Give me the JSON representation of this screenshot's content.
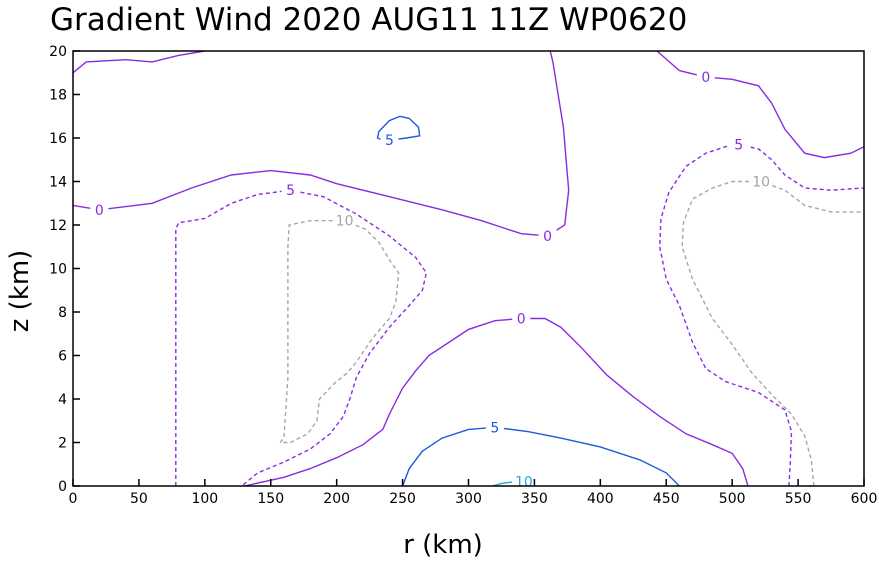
{
  "chart_data": {
    "type": "contour",
    "title": "Gradient Wind 2020 AUG11 11Z  WP0620",
    "xlabel": "r (km)",
    "ylabel": "z (km)",
    "xlim": [
      0,
      600
    ],
    "ylim": [
      0,
      20
    ],
    "xticks": [
      "0",
      "50",
      "100",
      "150",
      "200",
      "250",
      "300",
      "350",
      "400",
      "450",
      "500",
      "550",
      "600"
    ],
    "yticks": [
      "0",
      "2",
      "4",
      "6",
      "8",
      "10",
      "12",
      "14",
      "16",
      "18",
      "20"
    ],
    "contours": [
      {
        "level": 0,
        "color": "#8a2be2",
        "dash": "solid",
        "lines": [
          {
            "label": "0",
            "label_at": [
              20,
              12.7
            ],
            "points": [
              [
                0,
                12.9
              ],
              [
                20,
                12.7
              ],
              [
                60,
                13
              ],
              [
                90,
                13.7
              ],
              [
                120,
                14.3
              ],
              [
                150,
                14.5
              ],
              [
                180,
                14.3
              ],
              [
                200,
                13.9
              ],
              [
                240,
                13.3
              ],
              [
                280,
                12.7
              ],
              [
                310,
                12.2
              ],
              [
                340,
                11.6
              ],
              [
                360,
                11.5
              ]
            ]
          },
          {
            "label": "0",
            "label_at": [
              360,
              11.5
            ],
            "points": [
              [
                360,
                11.5
              ],
              [
                373,
                12
              ],
              [
                376,
                13.6
              ],
              [
                374,
                15
              ],
              [
                372,
                16.5
              ],
              [
                368,
                18
              ],
              [
                364,
                19.5
              ],
              [
                362,
                20
              ]
            ]
          },
          {
            "label": "",
            "label_at": null,
            "points": [
              [
                0,
                19
              ],
              [
                10,
                19.5
              ],
              [
                40,
                19.6
              ],
              [
                60,
                19.5
              ],
              [
                80,
                19.8
              ],
              [
                100,
                20
              ]
            ]
          },
          {
            "label": "0",
            "label_at": [
              480,
              18.8
            ],
            "points": [
              [
                443,
                20
              ],
              [
                460,
                19.1
              ],
              [
                480,
                18.8
              ],
              [
                500,
                18.7
              ],
              [
                520,
                18.4
              ],
              [
                530,
                17.6
              ],
              [
                540,
                16.4
              ],
              [
                555,
                15.3
              ],
              [
                570,
                15.1
              ],
              [
                590,
                15.3
              ],
              [
                600,
                15.6
              ]
            ]
          },
          {
            "label": "0",
            "label_at": [
              340,
              7.7
            ],
            "points": [
              [
                130,
                0
              ],
              [
                160,
                0.4
              ],
              [
                180,
                0.8
              ],
              [
                200,
                1.3
              ],
              [
                220,
                1.9
              ],
              [
                235,
                2.6
              ],
              [
                240,
                3.3
              ],
              [
                250,
                4.5
              ],
              [
                260,
                5.3
              ],
              [
                270,
                6
              ],
              [
                285,
                6.6
              ],
              [
                300,
                7.2
              ],
              [
                320,
                7.6
              ],
              [
                340,
                7.7
              ],
              [
                358,
                7.7
              ],
              [
                370,
                7.3
              ],
              [
                385,
                6.4
              ],
              [
                405,
                5.1
              ],
              [
                425,
                4.1
              ],
              [
                445,
                3.2
              ],
              [
                465,
                2.4
              ],
              [
                485,
                1.9
              ],
              [
                500,
                1.5
              ],
              [
                508,
                0.8
              ],
              [
                512,
                0
              ]
            ]
          }
        ]
      },
      {
        "level": 5,
        "color": "#8a2be2",
        "dash": "dashed",
        "lines": [
          {
            "label": "5",
            "label_at": [
              165,
              13.6
            ],
            "points": [
              [
                78,
                0
              ],
              [
                78,
                11.8
              ],
              [
                80,
                12.1
              ],
              [
                100,
                12.3
              ],
              [
                120,
                13
              ],
              [
                140,
                13.4
              ],
              [
                165,
                13.6
              ],
              [
                190,
                13.3
              ],
              [
                215,
                12.5
              ],
              [
                240,
                11.5
              ],
              [
                260,
                10.5
              ],
              [
                268,
                9.8
              ],
              [
                265,
                9
              ],
              [
                255,
                8.3
              ],
              [
                240,
                7.3
              ],
              [
                225,
                6.1
              ],
              [
                215,
                5
              ],
              [
                210,
                4
              ],
              [
                205,
                3.2
              ],
              [
                195,
                2.4
              ],
              [
                180,
                1.7
              ],
              [
                160,
                1.1
              ],
              [
                140,
                0.6
              ],
              [
                128,
                0
              ]
            ]
          },
          {
            "label": "5",
            "label_at": [
              505,
              15.7
            ],
            "points": [
              [
                543,
                0
              ],
              [
                544,
                1
              ],
              [
                545,
                2.5
              ],
              [
                540,
                3.5
              ],
              [
                520,
                4.3
              ],
              [
                495,
                4.8
              ],
              [
                480,
                5.4
              ],
              [
                470,
                6.6
              ],
              [
                460,
                8.3
              ],
              [
                450,
                9.5
              ],
              [
                445,
                11
              ],
              [
                446,
                12.3
              ],
              [
                452,
                13.5
              ],
              [
                465,
                14.7
              ],
              [
                480,
                15.3
              ],
              [
                495,
                15.6
              ],
              [
                505,
                15.7
              ],
              [
                520,
                15.5
              ],
              [
                530,
                15
              ],
              [
                540,
                14.3
              ],
              [
                555,
                13.7
              ],
              [
                575,
                13.6
              ],
              [
                600,
                13.7
              ]
            ]
          }
        ]
      },
      {
        "level": -5,
        "color": "#1e5adc",
        "dash": "solid",
        "lines": [
          {
            "label": "5",
            "label_at": [
              240,
              15.9
            ],
            "points": [
              [
                240,
                15.9
              ],
              [
                253,
                16
              ],
              [
                263,
                16.1
              ],
              [
                262,
                16.5
              ],
              [
                255,
                16.9
              ],
              [
                248,
                17
              ],
              [
                240,
                16.8
              ],
              [
                232,
                16.3
              ],
              [
                231,
                16
              ],
              [
                235,
                15.9
              ],
              [
                240,
                15.9
              ]
            ]
          },
          {
            "label": "5",
            "label_at": [
              320,
              2.7
            ],
            "points": [
              [
                250,
                0
              ],
              [
                255,
                0.8
              ],
              [
                265,
                1.6
              ],
              [
                280,
                2.2
              ],
              [
                300,
                2.6
              ],
              [
                320,
                2.7
              ],
              [
                345,
                2.5
              ],
              [
                370,
                2.2
              ],
              [
                400,
                1.8
              ],
              [
                430,
                1.2
              ],
              [
                450,
                0.6
              ],
              [
                460,
                0
              ]
            ]
          }
        ]
      },
      {
        "level": -10,
        "color": "#22a8e0",
        "dash": "solid",
        "lines": [
          {
            "label": "10",
            "label_at": [
              342,
              0.2
            ],
            "points": [
              [
                318,
                0
              ],
              [
                325,
                0.12
              ],
              [
                333,
                0.18
              ]
            ]
          }
        ]
      },
      {
        "level": 10,
        "color": "#a6a6a6",
        "dash": "dashed",
        "lines": [
          {
            "label": "10",
            "label_at": [
              206,
              12.2
            ],
            "points": [
              [
                157,
                2
              ],
              [
                160,
                2.2
              ],
              [
                163,
                5
              ],
              [
                163,
                9
              ],
              [
                163,
                11
              ],
              [
                164,
                12
              ],
              [
                180,
                12.2
              ],
              [
                206,
                12.2
              ],
              [
                222,
                11.8
              ],
              [
                232,
                11.2
              ],
              [
                240,
                10.4
              ],
              [
                247,
                9.8
              ],
              [
                245,
                8.5
              ],
              [
                240,
                7.7
              ],
              [
                230,
                7
              ],
              [
                225,
                6.6
              ],
              [
                215,
                5.7
              ],
              [
                208,
                5.2
              ],
              [
                198,
                4.7
              ],
              [
                187,
                4
              ],
              [
                185,
                3
              ],
              [
                178,
                2.4
              ],
              [
                165,
                2
              ],
              [
                157,
                2
              ]
            ]
          },
          {
            "label": "10",
            "label_at": [
              522,
              14
            ],
            "points": [
              [
                562,
                0
              ],
              [
                560,
                1.2
              ],
              [
                555,
                2.3
              ],
              [
                545,
                3.3
              ],
              [
                530,
                4.2
              ],
              [
                515,
                5.2
              ],
              [
                500,
                6.5
              ],
              [
                485,
                7.7
              ],
              [
                470,
                9.5
              ],
              [
                462,
                11
              ],
              [
                463,
                12.1
              ],
              [
                470,
                13.2
              ],
              [
                485,
                13.7
              ],
              [
                500,
                14
              ],
              [
                522,
                14
              ],
              [
                540,
                13.6
              ],
              [
                555,
                12.9
              ],
              [
                575,
                12.6
              ],
              [
                600,
                12.6
              ]
            ]
          }
        ]
      }
    ]
  }
}
